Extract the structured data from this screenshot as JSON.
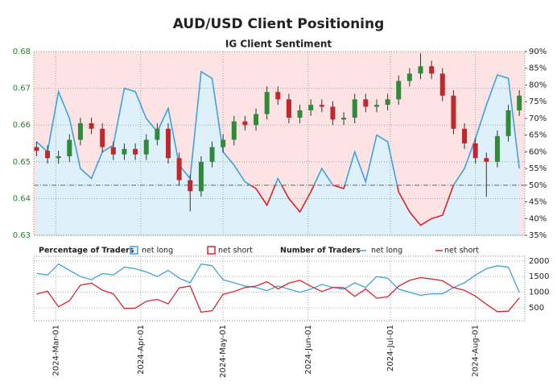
{
  "chart_data": [
    {
      "type": "candlestick",
      "title": "AUD/USD Client Positioning",
      "subtitle": "IG Client Sentiment",
      "x": [
        "2024-02-23",
        "2024-02-27",
        "2024-03-02",
        "2024-03-06",
        "2024-03-10",
        "2024-03-14",
        "2024-03-18",
        "2024-03-22",
        "2024-03-26",
        "2024-03-30",
        "2024-04-03",
        "2024-04-07",
        "2024-04-11",
        "2024-04-15",
        "2024-04-19",
        "2024-04-23",
        "2024-04-27",
        "2024-05-01",
        "2024-05-05",
        "2024-05-09",
        "2024-05-13",
        "2024-05-17",
        "2024-05-21",
        "2024-05-25",
        "2024-05-29",
        "2024-06-02",
        "2024-06-06",
        "2024-06-10",
        "2024-06-14",
        "2024-06-18",
        "2024-06-22",
        "2024-06-26",
        "2024-06-30",
        "2024-07-04",
        "2024-07-08",
        "2024-07-12",
        "2024-07-16",
        "2024-07-20",
        "2024-07-24",
        "2024-07-28",
        "2024-08-01",
        "2024-08-05",
        "2024-08-09",
        "2024-08-13",
        "2024-08-17"
      ],
      "open": [
        0.654,
        0.653,
        0.651,
        0.6515,
        0.656,
        0.6605,
        0.659,
        0.654,
        0.652,
        0.6535,
        0.652,
        0.656,
        0.659,
        0.651,
        0.645,
        0.642,
        0.65,
        0.654,
        0.656,
        0.661,
        0.66,
        0.663,
        0.669,
        0.667,
        0.662,
        0.664,
        0.6655,
        0.665,
        0.6615,
        0.662,
        0.667,
        0.665,
        0.6655,
        0.667,
        0.672,
        0.674,
        0.676,
        0.674,
        0.668,
        0.659,
        0.655,
        0.651,
        0.65,
        0.657,
        0.664
      ],
      "high": [
        0.6555,
        0.6545,
        0.653,
        0.6575,
        0.662,
        0.662,
        0.6605,
        0.6555,
        0.655,
        0.655,
        0.6575,
        0.6605,
        0.6605,
        0.6525,
        0.6465,
        0.6515,
        0.6555,
        0.6575,
        0.6625,
        0.6625,
        0.6645,
        0.6705,
        0.6705,
        0.6685,
        0.6655,
        0.667,
        0.667,
        0.6665,
        0.6635,
        0.6685,
        0.6685,
        0.667,
        0.6685,
        0.6735,
        0.6755,
        0.6795,
        0.6775,
        0.6755,
        0.6695,
        0.6605,
        0.6565,
        0.6525,
        0.6585,
        0.6655,
        0.6695
      ],
      "low": [
        0.6515,
        0.6495,
        0.6495,
        0.65,
        0.6545,
        0.6575,
        0.6525,
        0.6505,
        0.6505,
        0.6505,
        0.6505,
        0.6545,
        0.6495,
        0.6435,
        0.6365,
        0.6405,
        0.6485,
        0.6525,
        0.6545,
        0.6585,
        0.6585,
        0.6615,
        0.6655,
        0.6605,
        0.6605,
        0.6625,
        0.6635,
        0.66,
        0.66,
        0.6605,
        0.6635,
        0.6635,
        0.664,
        0.6655,
        0.6705,
        0.6725,
        0.6725,
        0.6665,
        0.6575,
        0.6535,
        0.6495,
        0.6405,
        0.6485,
        0.6555,
        0.6625
      ],
      "close": [
        0.653,
        0.651,
        0.6515,
        0.656,
        0.6605,
        0.659,
        0.654,
        0.652,
        0.6535,
        0.652,
        0.656,
        0.659,
        0.651,
        0.645,
        0.642,
        0.65,
        0.654,
        0.656,
        0.661,
        0.66,
        0.663,
        0.669,
        0.667,
        0.662,
        0.664,
        0.6655,
        0.665,
        0.6615,
        0.662,
        0.667,
        0.665,
        0.6655,
        0.667,
        0.672,
        0.674,
        0.676,
        0.674,
        0.668,
        0.659,
        0.655,
        0.651,
        0.65,
        0.657,
        0.664,
        0.668
      ],
      "up_color": "#2e8b3a",
      "down_color": "#c0282d",
      "series": [
        {
          "name": "net long",
          "color": "#3fa2dd",
          "below_color": "#d7262f",
          "axis": "y2",
          "values": [
            63,
            60,
            78,
            70,
            55,
            52,
            60,
            62,
            79,
            78,
            70,
            66,
            73,
            56,
            52,
            84,
            82,
            60,
            56,
            51,
            49,
            44,
            52,
            46,
            42,
            48,
            55,
            50,
            49,
            60,
            51,
            65,
            63,
            48,
            42,
            38,
            40,
            41,
            50,
            55,
            64,
            74,
            83,
            82,
            55
          ]
        }
      ],
      "reference_line": 50,
      "xlim": [
        "2024-02-22",
        "2024-08-19"
      ],
      "ylim": [
        0.63,
        0.68
      ],
      "yticks": [
        0.63,
        0.64,
        0.65,
        0.66,
        0.67,
        0.68
      ],
      "y2lim": [
        35,
        90
      ],
      "y2ticks": [
        {
          "value": 35,
          "label": "35%"
        },
        {
          "value": 40,
          "label": "40%"
        },
        {
          "value": 45,
          "label": "45%"
        },
        {
          "value": 50,
          "label": "50%"
        },
        {
          "value": 55,
          "label": "55%"
        },
        {
          "value": 60,
          "label": "60%"
        },
        {
          "value": 65,
          "label": "65%"
        },
        {
          "value": 70,
          "label": "70%"
        },
        {
          "value": 75,
          "label": "75%"
        },
        {
          "value": 80,
          "label": "80%"
        },
        {
          "value": 85,
          "label": "85%"
        },
        {
          "value": 90,
          "label": "90%"
        }
      ],
      "grid": true
    },
    {
      "type": "line",
      "legend_groups": [
        {
          "title": "Percentage of Traders",
          "entries": [
            "net long",
            "net short"
          ]
        },
        {
          "title": "Number of Traders"
        }
      ],
      "x": [
        "2024-02-23",
        "2024-02-27",
        "2024-03-02",
        "2024-03-06",
        "2024-03-10",
        "2024-03-14",
        "2024-03-18",
        "2024-03-22",
        "2024-03-26",
        "2024-03-30",
        "2024-04-03",
        "2024-04-07",
        "2024-04-11",
        "2024-04-15",
        "2024-04-19",
        "2024-04-23",
        "2024-04-27",
        "2024-05-01",
        "2024-05-05",
        "2024-05-09",
        "2024-05-13",
        "2024-05-17",
        "2024-05-21",
        "2024-05-25",
        "2024-05-29",
        "2024-06-02",
        "2024-06-06",
        "2024-06-10",
        "2024-06-14",
        "2024-06-18",
        "2024-06-22",
        "2024-06-26",
        "2024-06-30",
        "2024-07-04",
        "2024-07-08",
        "2024-07-12",
        "2024-07-16",
        "2024-07-20",
        "2024-07-24",
        "2024-07-28",
        "2024-08-01",
        "2024-08-05",
        "2024-08-09",
        "2024-08-13",
        "2024-08-17"
      ],
      "series": [
        {
          "name": "net long",
          "color": "#3fa2dd",
          "values": [
            1600,
            1550,
            1900,
            1700,
            1500,
            1400,
            1600,
            1550,
            1800,
            1750,
            1650,
            1500,
            1700,
            1450,
            1300,
            1900,
            1850,
            1400,
            1300,
            1200,
            1150,
            1050,
            1200,
            1100,
            1000,
            1100,
            1250,
            1150,
            1100,
            1300,
            1150,
            1500,
            1450,
            1100,
            1000,
            900,
            950,
            950,
            1150,
            1300,
            1550,
            1750,
            1850,
            1800,
            1000
          ]
        },
        {
          "name": "net short",
          "color": "#d7262f",
          "values": [
            940,
            1033,
            536,
            729,
            1227,
            1292,
            1067,
            950,
            478,
            494,
            707,
            773,
            629,
            1139,
            1200,
            362,
            406,
            933,
            1021,
            1153,
            1197,
            1336,
            1108,
            1291,
            1381,
            1192,
            1023,
            1150,
            1145,
            867,
            1105,
            808,
            852,
            1192,
            1381,
            1468,
            1425,
            1367,
            1150,
            1064,
            872,
            615,
            379,
            395,
            818
          ]
        }
      ],
      "xlim": [
        "2024-02-22",
        "2024-08-19"
      ],
      "xticks": [
        {
          "value": "2024-03-01",
          "label": "2024-Mar-01"
        },
        {
          "value": "2024-04-01",
          "label": "2024-Apr-01"
        },
        {
          "value": "2024-05-01",
          "label": "2024-May-01"
        },
        {
          "value": "2024-06-01",
          "label": "2024-Jun-01"
        },
        {
          "value": "2024-07-01",
          "label": "2024-Jul-01"
        },
        {
          "value": "2024-08-01",
          "label": "2024-Aug-01"
        }
      ],
      "ylim": [
        90,
        2150
      ],
      "yticks": [
        500,
        1000,
        1500,
        2000
      ],
      "grid": true
    }
  ]
}
